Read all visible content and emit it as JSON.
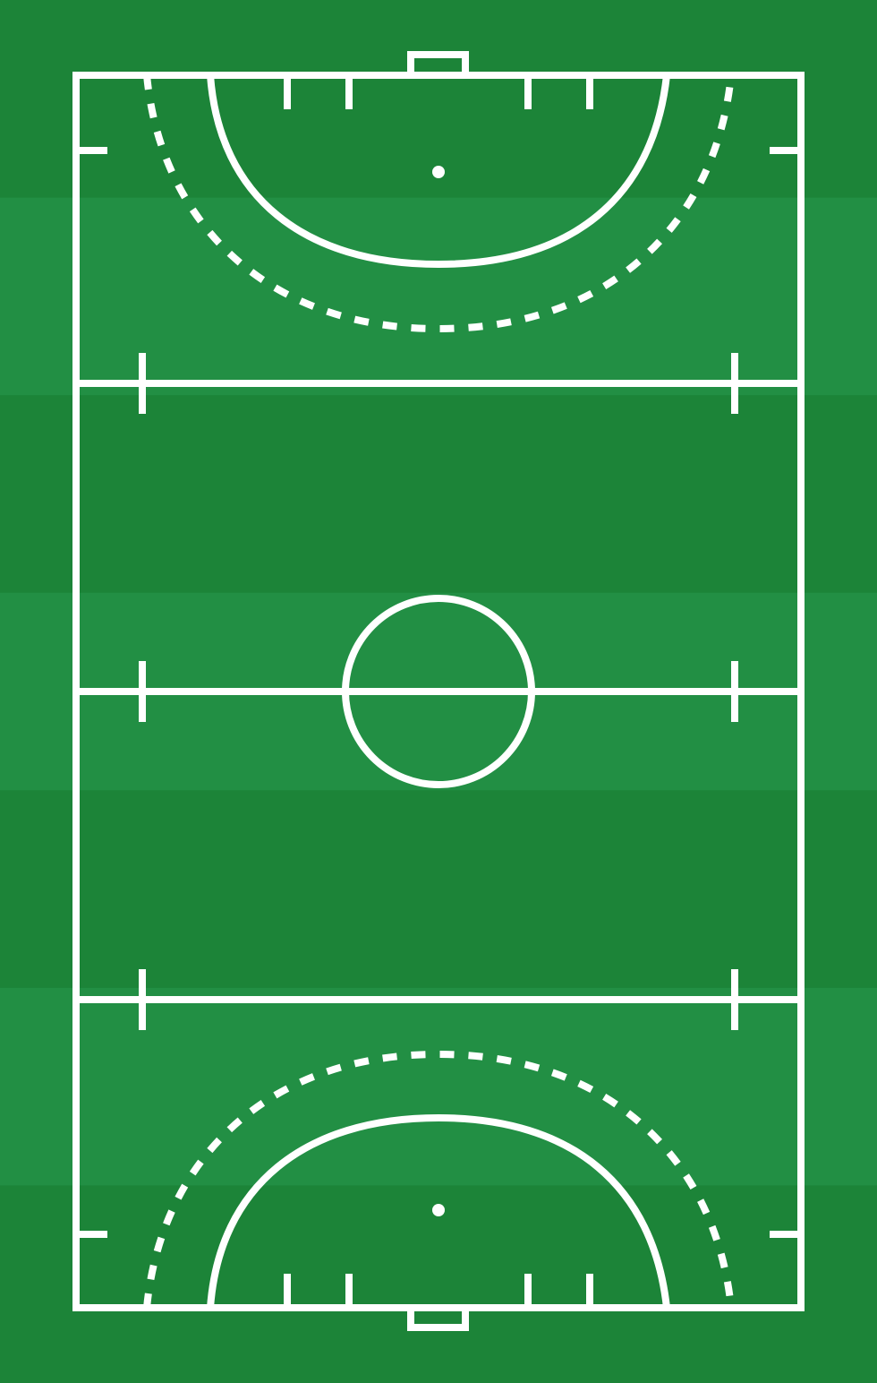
{
  "pitch": {
    "sport": "field hockey",
    "orientation": "portrait",
    "colors": {
      "stripe_dark": "#1c8438",
      "stripe_light": "#228f44",
      "line": "#ffffff"
    },
    "stripe_count": 7,
    "features": [
      "outer-boundary",
      "top-goal",
      "bottom-goal",
      "top-shooting-circle",
      "bottom-shooting-circle",
      "top-dashed-circle",
      "bottom-dashed-circle",
      "top-penalty-spot",
      "bottom-penalty-spot",
      "top-23m-line",
      "center-line",
      "bottom-23m-line",
      "center-circle"
    ]
  }
}
